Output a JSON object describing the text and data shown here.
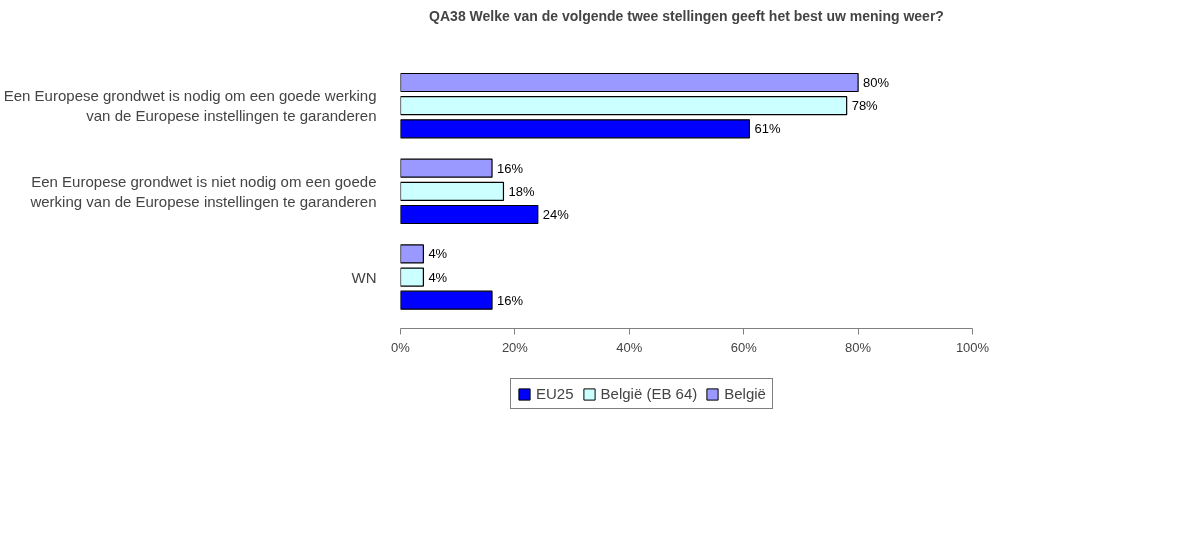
{
  "chart_data": {
    "type": "bar",
    "orientation": "horizontal",
    "title": "QA38 Welke van de volgende twee stellingen geeft het best uw mening weer?",
    "categories": [
      "Een Europese grondwet is nodig om een goede werking van de Europese instellingen te garanderen",
      "Een Europese grondwet is niet nodig om een goede werking van de Europese instellingen te garanderen",
      "WN"
    ],
    "series": [
      {
        "name": "EU25",
        "color": "#0000ff",
        "values": [
          61,
          24,
          16
        ],
        "value_labels": [
          "61%",
          "24%",
          "16%"
        ]
      },
      {
        "name": "België (EB 64)",
        "color": "#ccffff",
        "values": [
          78,
          18,
          4
        ],
        "value_labels": [
          "78%",
          "18%",
          "4%"
        ]
      },
      {
        "name": "België",
        "color": "#9999ff",
        "values": [
          80,
          16,
          4
        ],
        "value_labels": [
          "80%",
          "16%",
          "4%"
        ]
      }
    ],
    "xlim": [
      0,
      100
    ],
    "xticks": [
      {
        "value": 0,
        "label": "0%"
      },
      {
        "value": 20,
        "label": "20%"
      },
      {
        "value": 40,
        "label": "40%"
      },
      {
        "value": 60,
        "label": "60%"
      },
      {
        "value": 80,
        "label": "80%"
      },
      {
        "value": 100,
        "label": "100%"
      }
    ],
    "grid": false,
    "legend": "bottom"
  }
}
